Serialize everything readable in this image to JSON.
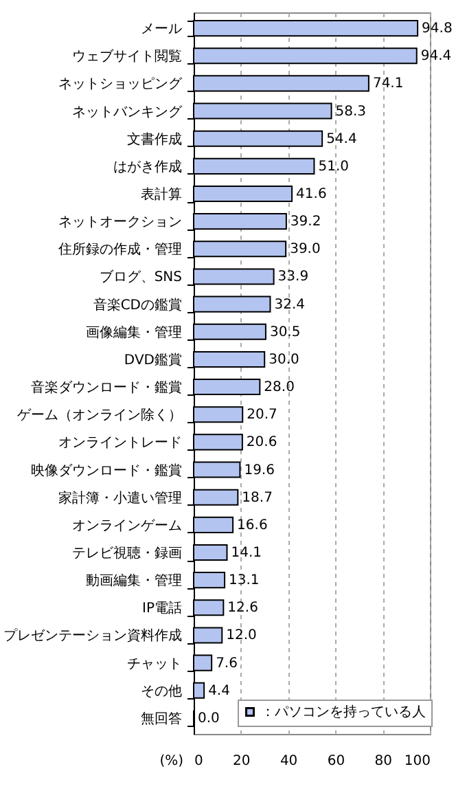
{
  "chart_data": {
    "type": "bar",
    "orientation": "horizontal",
    "categories": [
      "メール",
      "ウェブサイト閲覧",
      "ネットショッピング",
      "ネットバンキング",
      "文書作成",
      "はがき作成",
      "表計算",
      "ネットオークション",
      "住所録の作成・管理",
      "ブログ、SNS",
      "音楽CDの鑑賞",
      "画像編集・管理",
      "DVD鑑賞",
      "音楽ダウンロード・鑑賞",
      "ゲーム（オンライン除く）",
      "オンライントレード",
      "映像ダウンロード・鑑賞",
      "家計簿・小遣い管理",
      "オンラインゲーム",
      "テレビ視聴・録画",
      "動画編集・管理",
      "IP電話",
      "プレゼンテーション資料作成",
      "チャット",
      "その他",
      "無回答"
    ],
    "series": [
      {
        "name": "：パソコンを持っている人",
        "color": "#b4c4f0",
        "values": [
          94.8,
          94.4,
          74.1,
          58.3,
          54.4,
          51.0,
          41.6,
          39.2,
          39.0,
          33.9,
          32.4,
          30.5,
          30.0,
          28.0,
          20.7,
          20.6,
          19.6,
          18.7,
          16.6,
          14.1,
          13.1,
          12.6,
          12.0,
          7.6,
          4.4,
          0.0
        ],
        "value_labels": [
          "94.8",
          "94.4",
          "74.1",
          "58.3",
          "54.4",
          "51.0",
          "41.6",
          "39.2",
          "39.0",
          "33.9",
          "32.4",
          "30.5",
          "30.0",
          "28.0",
          "20.7",
          "20.6",
          "19.6",
          "18.7",
          "16.6",
          "14.1",
          "13.1",
          "12.6",
          "12.0",
          "7.6",
          "4.4",
          "0.0"
        ]
      }
    ],
    "xlim": [
      0,
      100
    ],
    "xticks": [
      0,
      20,
      40,
      60,
      80,
      100
    ],
    "xlabel": "(%)",
    "grid": "x",
    "legend": "bottom right"
  }
}
